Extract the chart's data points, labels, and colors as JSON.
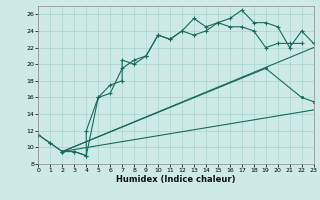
{
  "xlabel": "Humidex (Indice chaleur)",
  "bg_color": "#cdeae6",
  "line_color": "#1a6b5a",
  "grid_color": "#a8d4ce",
  "xlim": [
    0,
    23
  ],
  "ylim": [
    8,
    27
  ],
  "xticks": [
    0,
    1,
    2,
    3,
    4,
    5,
    6,
    7,
    8,
    9,
    10,
    11,
    12,
    13,
    14,
    15,
    16,
    17,
    18,
    19,
    20,
    21,
    22,
    23
  ],
  "yticks": [
    8,
    10,
    12,
    14,
    16,
    18,
    20,
    22,
    24,
    26
  ],
  "line1_x": [
    0,
    1,
    2,
    3,
    4,
    4,
    5,
    6,
    7,
    7,
    8,
    9,
    10,
    11,
    12,
    13,
    14,
    15,
    16,
    17,
    18,
    19,
    20,
    21,
    22
  ],
  "line1_y": [
    11.5,
    10.5,
    9.5,
    9.5,
    9.0,
    12.0,
    16.0,
    17.5,
    18.0,
    20.5,
    20.0,
    21.0,
    23.5,
    23.0,
    24.0,
    25.5,
    24.5,
    25.0,
    24.5,
    24.5,
    24.0,
    22.0,
    22.5,
    22.5,
    22.5
  ],
  "line2_x": [
    0,
    1,
    2,
    3,
    4,
    5,
    6,
    7,
    8,
    9,
    10,
    11,
    12,
    13,
    14,
    15,
    16,
    17,
    18,
    19,
    20,
    21,
    22,
    23
  ],
  "line2_y": [
    11.5,
    10.5,
    9.5,
    9.5,
    9.0,
    16.0,
    16.5,
    19.5,
    20.5,
    21.0,
    23.5,
    23.0,
    24.0,
    23.5,
    24.0,
    25.0,
    25.5,
    26.5,
    25.0,
    25.0,
    24.5,
    22.0,
    24.0,
    22.5
  ],
  "line3_x": [
    2,
    23
  ],
  "line3_y": [
    9.5,
    22.0
  ],
  "line4_x": [
    2,
    19,
    22,
    23
  ],
  "line4_y": [
    9.5,
    19.5,
    16.0,
    15.5
  ],
  "line5_x": [
    2,
    23
  ],
  "line5_y": [
    9.5,
    14.5
  ]
}
